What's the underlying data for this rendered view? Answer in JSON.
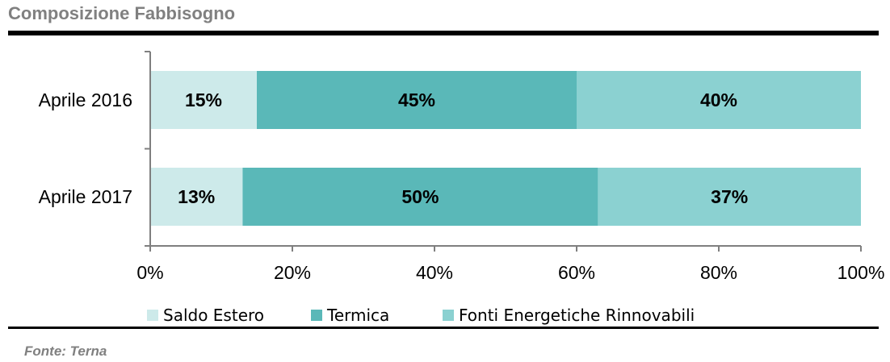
{
  "title": "Composizione Fabbisogno",
  "source": "Fonte: Terna",
  "colors": {
    "saldo_estero": "#cdeaea",
    "termica": "#5ab8b8",
    "rinnovabili": "#8bd1d1",
    "axis": "#7f7f7f"
  },
  "chart_data": {
    "type": "bar",
    "orientation": "horizontal",
    "stacked": true,
    "categories": [
      "Aprile 2016",
      "Aprile 2017"
    ],
    "series": [
      {
        "name": "Saldo Estero",
        "values": [
          15,
          13
        ],
        "labels": [
          "15%",
          "13%"
        ]
      },
      {
        "name": "Termica",
        "values": [
          45,
          50
        ],
        "labels": [
          "45%",
          "50%"
        ]
      },
      {
        "name": "Fonti Energetiche Rinnovabili",
        "values": [
          40,
          37
        ],
        "labels": [
          "40%",
          "37%"
        ]
      }
    ],
    "xlim": [
      0,
      100
    ],
    "xticks": [
      "0%",
      "20%",
      "40%",
      "60%",
      "80%",
      "100%"
    ],
    "xlabel": "",
    "ylabel": "",
    "grid": false,
    "legend_position": "bottom"
  }
}
